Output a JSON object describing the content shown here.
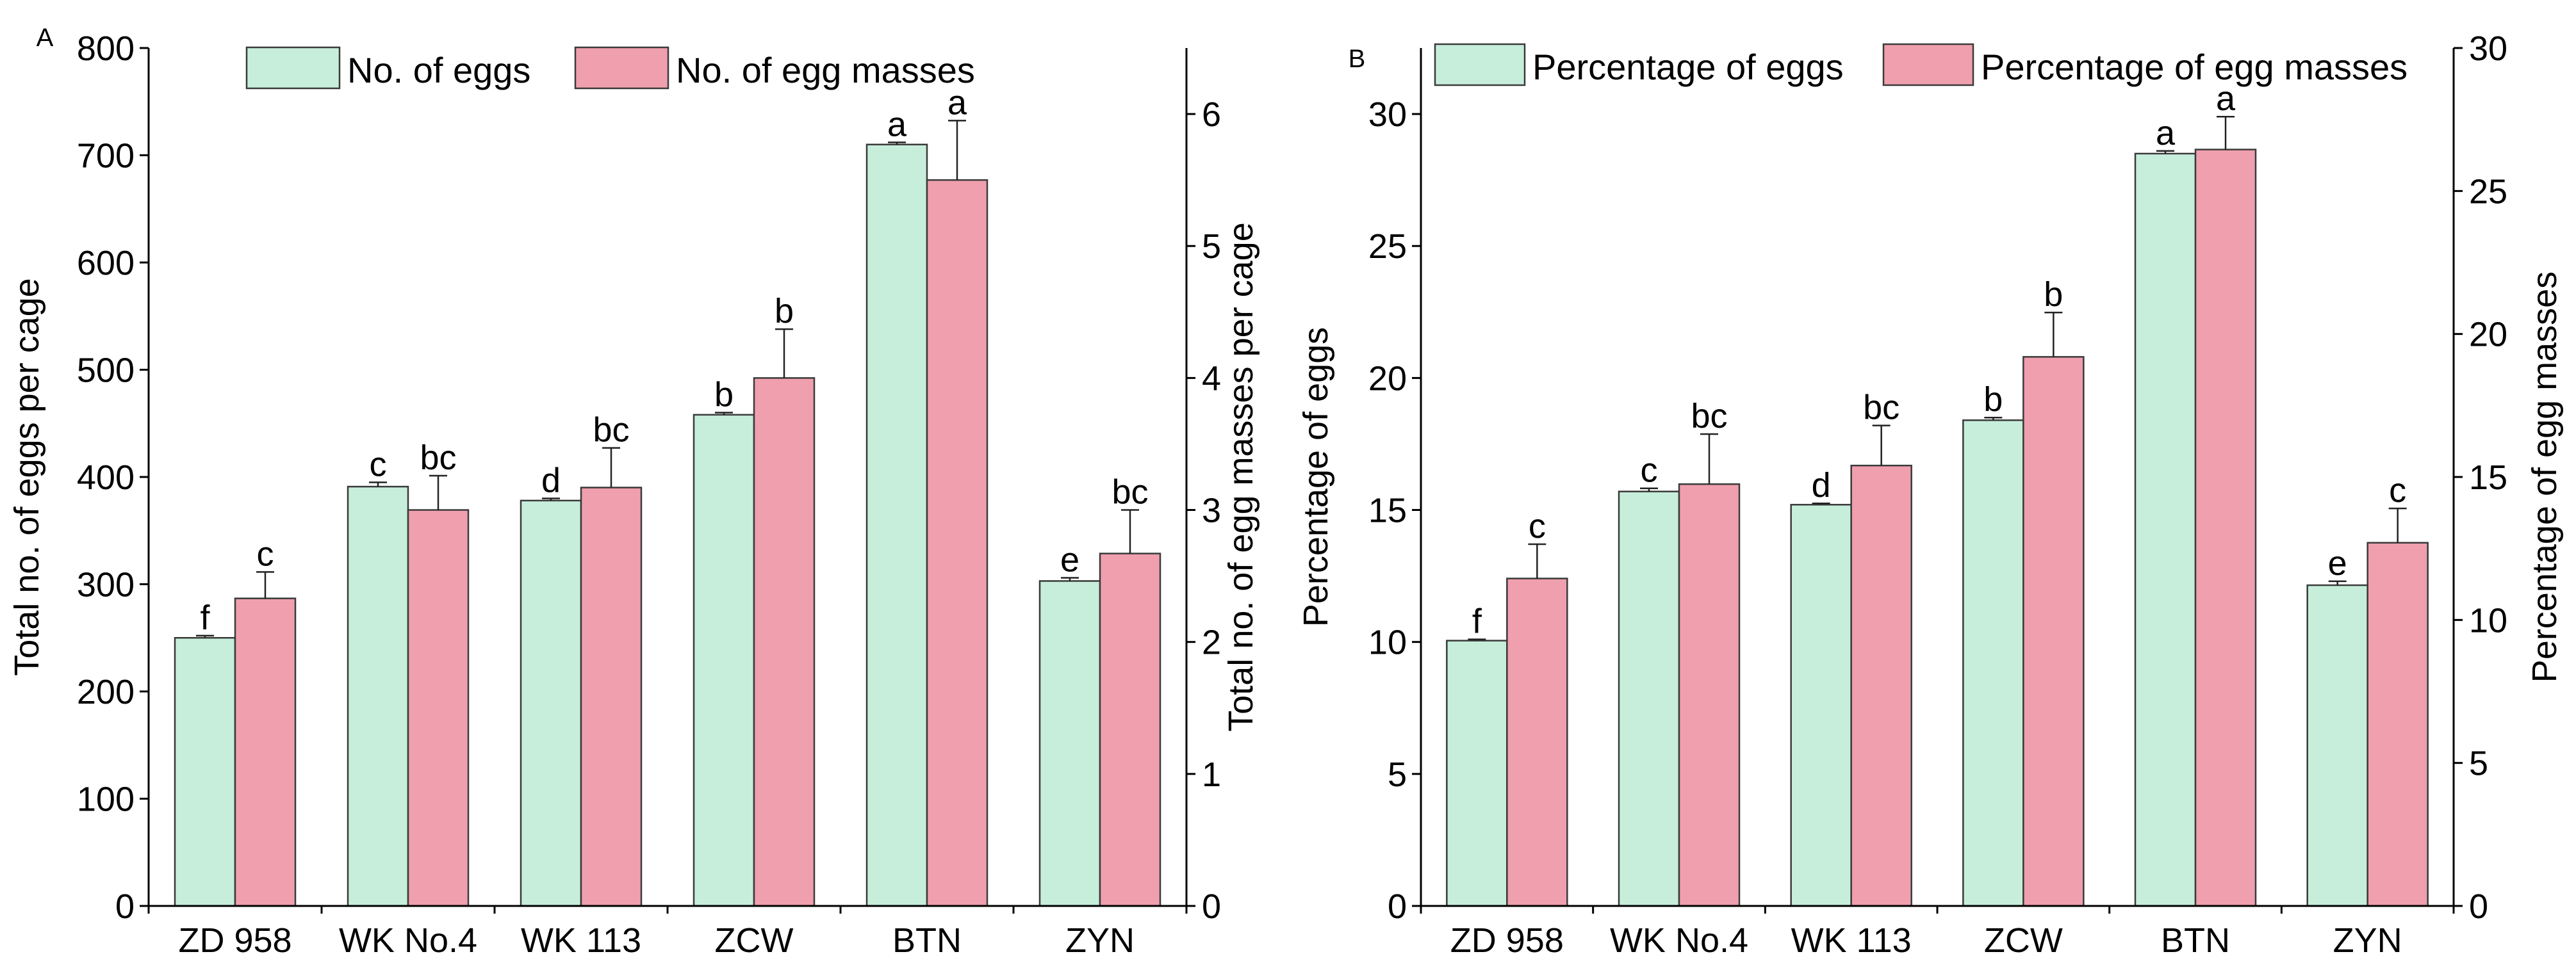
{
  "chart_data": [
    {
      "type": "bar",
      "panel_label": "A",
      "title": "",
      "categories": [
        "ZD 958",
        "WK No.4",
        "WK 113",
        "ZCW",
        "BTN",
        "ZYN"
      ],
      "xlabel": "",
      "ylabel": "Total no. of eggs per cage",
      "ylabel_right": "Total no. of egg masses per cage",
      "ylim": [
        0,
        800
      ],
      "yticks": [
        "0",
        "100",
        "200",
        "300",
        "400",
        "500",
        "600",
        "700",
        "800"
      ],
      "ylim_right": [
        0,
        6.5
      ],
      "yticks_right": [
        "0",
        "1",
        "2",
        "3",
        "4",
        "5",
        "6"
      ],
      "legend_position": "top-center",
      "series": [
        {
          "name": "No. of eggs",
          "axis": "left",
          "color": "#c6eedb",
          "values": [
            250,
            391,
            378,
            458,
            710,
            303
          ],
          "errors": [
            2,
            4,
            2,
            2,
            2,
            3
          ],
          "letters": [
            "f",
            "c",
            "d",
            "b",
            "a",
            "e"
          ]
        },
        {
          "name": "No. of egg masses",
          "axis": "right",
          "color": "#ef9fae",
          "values": [
            2.33,
            3.0,
            3.17,
            4.0,
            5.5,
            2.67
          ],
          "errors": [
            0.2,
            0.26,
            0.3,
            0.37,
            0.45,
            0.33
          ],
          "letters": [
            "c",
            "bc",
            "bc",
            "b",
            "a",
            "bc"
          ]
        }
      ]
    },
    {
      "type": "bar",
      "panel_label": "B",
      "title": "",
      "categories": [
        "ZD 958",
        "WK No.4",
        "WK 113",
        "ZCW",
        "BTN",
        "ZYN"
      ],
      "xlabel": "",
      "ylabel": "Percentage of eggs",
      "ylabel_right": "Percentage of egg masses",
      "ylim": [
        0,
        32.5
      ],
      "yticks": [
        "0",
        "5",
        "10",
        "15",
        "20",
        "25",
        "30"
      ],
      "ylim_right": [
        0,
        30
      ],
      "yticks_right": [
        "0",
        "5",
        "10",
        "15",
        "20",
        "25",
        "30"
      ],
      "legend_position": "top",
      "series": [
        {
          "name": "Percentage of eggs",
          "axis": "left",
          "color": "#c6eedb",
          "values": [
            10.05,
            15.7,
            15.2,
            18.4,
            28.5,
            12.15
          ],
          "errors": [
            0.05,
            0.12,
            0.05,
            0.1,
            0.1,
            0.15
          ],
          "letters": [
            "f",
            "c",
            "d",
            "b",
            "a",
            "e"
          ]
        },
        {
          "name": "Percentage of egg masses",
          "axis": "right",
          "color": "#ef9fae",
          "values": [
            11.45,
            14.75,
            15.4,
            19.2,
            26.45,
            12.7
          ],
          "errors": [
            1.2,
            1.75,
            1.4,
            1.55,
            1.15,
            1.2
          ],
          "letters": [
            "c",
            "bc",
            "bc",
            "b",
            "a",
            "c"
          ]
        }
      ]
    }
  ]
}
